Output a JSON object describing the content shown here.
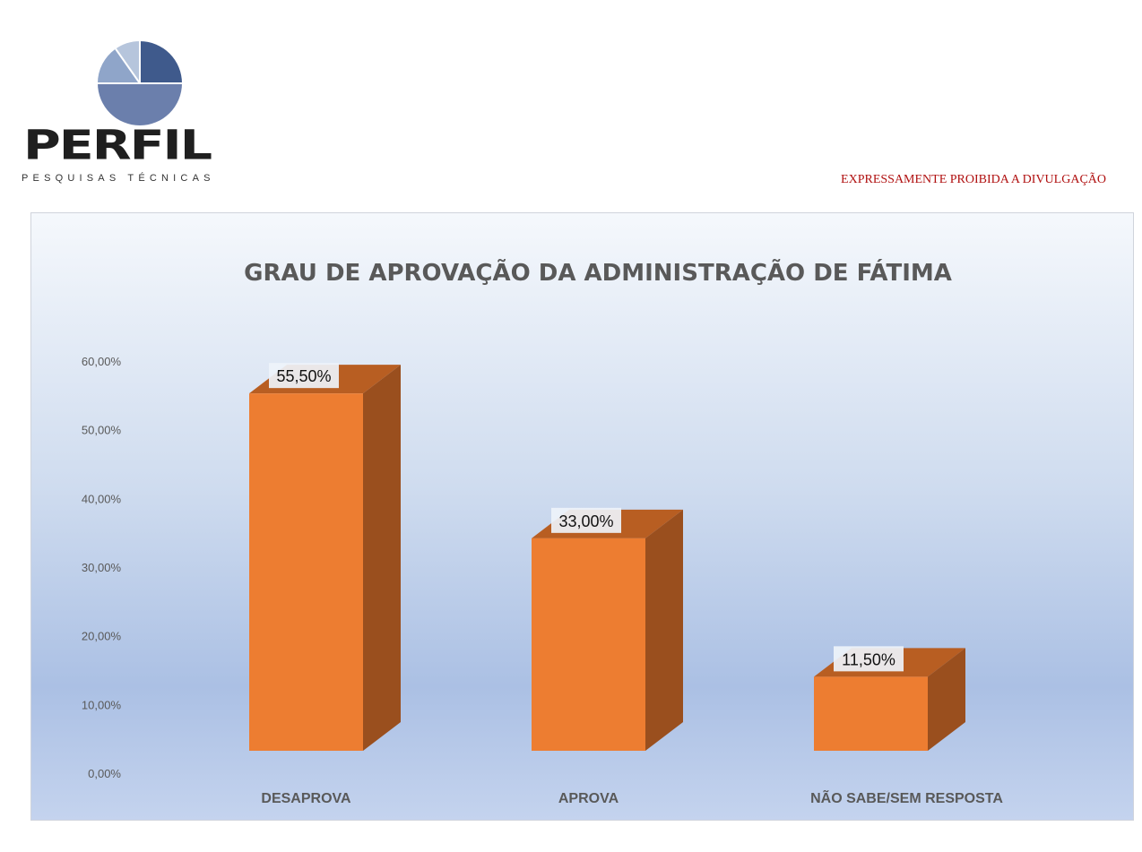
{
  "brand": {
    "name": "PERFIL",
    "tagline": "PESQUISAS TÉCNICAS",
    "logo_colors": [
      "#3f5a8c",
      "#6b7fac",
      "#8fa5c9",
      "#b6c5dc"
    ]
  },
  "notice": "EXPRESSAMENTE PROIBIDA A DIVULGAÇÃO",
  "colors": {
    "bar_front": "#ED7D31",
    "bar_side": "#9A4F1E",
    "bar_top": "#B85E22",
    "notice": "#b01010"
  },
  "chart_data": {
    "type": "bar",
    "title": "GRAU DE APROVAÇÃO DA ADMINISTRAÇÃO DE FÁTIMA",
    "categories": [
      "DESAPROVA",
      "APROVA",
      "NÃO SABE/SEM RESPOSTA"
    ],
    "values": [
      55.5,
      33.0,
      11.5
    ],
    "data_labels": [
      "55,50%",
      "33,00%",
      "11,50%"
    ],
    "yticks": [
      "0,00%",
      "10,00%",
      "20,00%",
      "30,00%",
      "40,00%",
      "50,00%",
      "60,00%"
    ],
    "ylim": [
      0,
      60
    ],
    "xlabel": "",
    "ylabel": "",
    "grid": false,
    "style": "3d-column"
  }
}
